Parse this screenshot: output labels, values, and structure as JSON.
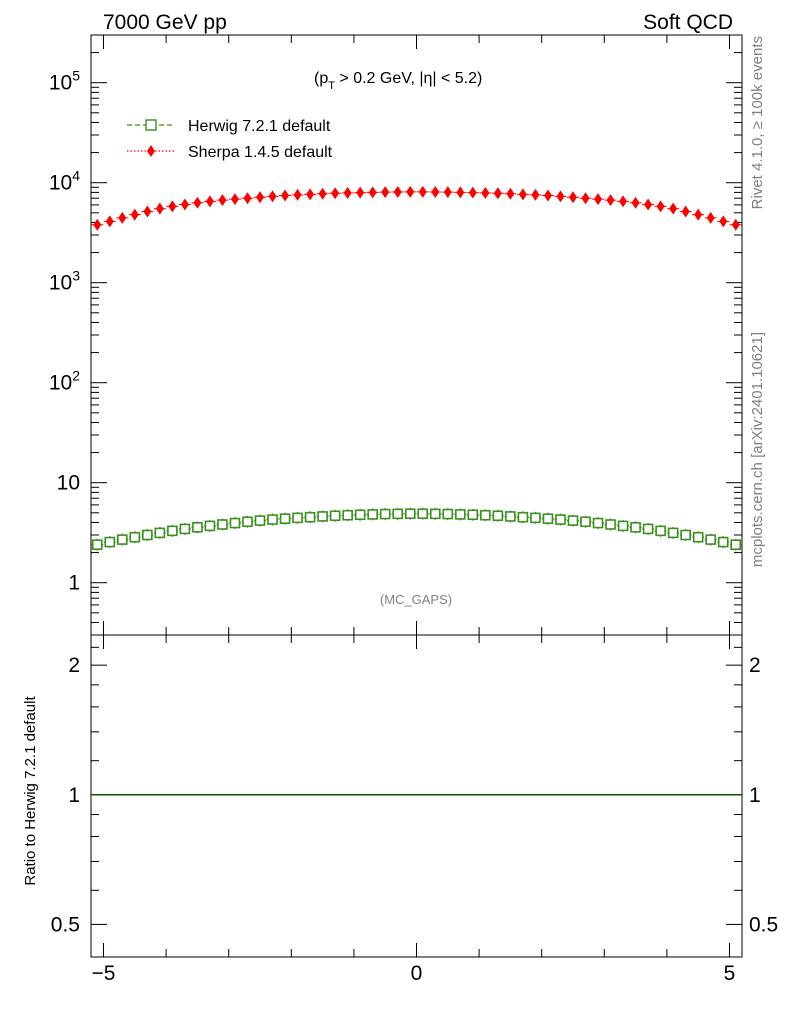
{
  "header": {
    "left": "7000 GeV pp",
    "right": "Soft QCD"
  },
  "side_labels": {
    "rivet": "Rivet 4.1.0, ≥ 100k events",
    "mcplots": "mcplots.cern.ch [arXiv:2401.10621]"
  },
  "colors": {
    "herwig": "#3a8f1e",
    "sherpa": "#ff0000"
  },
  "chart_data": [
    {
      "type": "scatter",
      "title": "(p_T > 0.2 GeV, |η| < 5.2)",
      "title_parts": {
        "open": "(p",
        "sub": "T",
        "rest": " > 0.2 GeV, |η| < 5.2)"
      },
      "watermark": "(MC_GAPS)",
      "yscale": "log",
      "xlim": [
        -5.2,
        5.2
      ],
      "ylim": [
        0.3,
        300000
      ],
      "yticks": [
        {
          "value": 1,
          "label": "1"
        },
        {
          "value": 10,
          "label": "10"
        },
        {
          "value": 100,
          "label": "10",
          "sup": "2"
        },
        {
          "value": 1000,
          "label": "10",
          "sup": "3"
        },
        {
          "value": 10000,
          "label": "10",
          "sup": "4"
        },
        {
          "value": 100000,
          "label": "10",
          "sup": "5"
        }
      ],
      "legend": [
        {
          "series": "herwig",
          "label": "Herwig 7.2.1 default"
        },
        {
          "series": "sherpa",
          "label": "Sherpa 1.4.5 default"
        }
      ],
      "x": [
        -5.1,
        -4.9,
        -4.7,
        -4.5,
        -4.3,
        -4.1,
        -3.9,
        -3.7,
        -3.5,
        -3.3,
        -3.1,
        -2.9,
        -2.7,
        -2.5,
        -2.3,
        -2.1,
        -1.9,
        -1.7,
        -1.5,
        -1.3,
        -1.1,
        -0.9,
        -0.7,
        -0.5,
        -0.3,
        -0.1,
        0.1,
        0.3,
        0.5,
        0.7,
        0.9,
        1.1,
        1.3,
        1.5,
        1.7,
        1.9,
        2.1,
        2.3,
        2.5,
        2.7,
        2.9,
        3.1,
        3.3,
        3.5,
        3.7,
        3.9,
        4.1,
        4.3,
        4.5,
        4.7,
        4.9,
        5.1
      ],
      "series": [
        {
          "name": "Herwig 7.2.1 default",
          "key": "herwig",
          "marker": "open-square",
          "values": [
            2.4,
            2.55,
            2.7,
            2.85,
            3.0,
            3.15,
            3.3,
            3.45,
            3.58,
            3.7,
            3.82,
            3.95,
            4.07,
            4.18,
            4.28,
            4.37,
            4.45,
            4.52,
            4.6,
            4.67,
            4.73,
            4.78,
            4.82,
            4.86,
            4.88,
            4.9,
            4.9,
            4.88,
            4.86,
            4.82,
            4.78,
            4.73,
            4.67,
            4.6,
            4.52,
            4.45,
            4.37,
            4.28,
            4.18,
            4.07,
            3.95,
            3.82,
            3.7,
            3.58,
            3.45,
            3.3,
            3.15,
            3.0,
            2.85,
            2.7,
            2.55,
            2.4
          ]
        },
        {
          "name": "Sherpa 1.4.5 default",
          "key": "sherpa",
          "marker": "filled-diamond",
          "values": [
            3800,
            4100,
            4450,
            4800,
            5150,
            5500,
            5800,
            6050,
            6300,
            6500,
            6700,
            6850,
            7000,
            7150,
            7300,
            7450,
            7550,
            7650,
            7750,
            7850,
            7900,
            7950,
            8000,
            8050,
            8080,
            8100,
            8100,
            8080,
            8050,
            8000,
            7950,
            7900,
            7850,
            7750,
            7650,
            7550,
            7450,
            7300,
            7150,
            7000,
            6850,
            6700,
            6500,
            6300,
            6050,
            5800,
            5500,
            5150,
            4800,
            4450,
            4100,
            3800
          ]
        }
      ]
    },
    {
      "type": "line",
      "ylabel": "Ratio to Herwig 7.2.1 default",
      "yscale": "log",
      "xlim": [
        -5.2,
        5.2
      ],
      "ylim": [
        0.42,
        2.35
      ],
      "xticks": [
        {
          "value": -5,
          "label": "−5"
        },
        {
          "value": 0,
          "label": "0"
        },
        {
          "value": 5,
          "label": "5"
        }
      ],
      "yticks": [
        {
          "value": 0.5,
          "label": "0.5"
        },
        {
          "value": 1,
          "label": "1"
        },
        {
          "value": 2,
          "label": "2"
        }
      ],
      "reference": 1.0,
      "series": [
        {
          "name": "Herwig 7.2.1 default",
          "key": "herwig",
          "values": "ratio = 1 across full range"
        }
      ]
    }
  ]
}
